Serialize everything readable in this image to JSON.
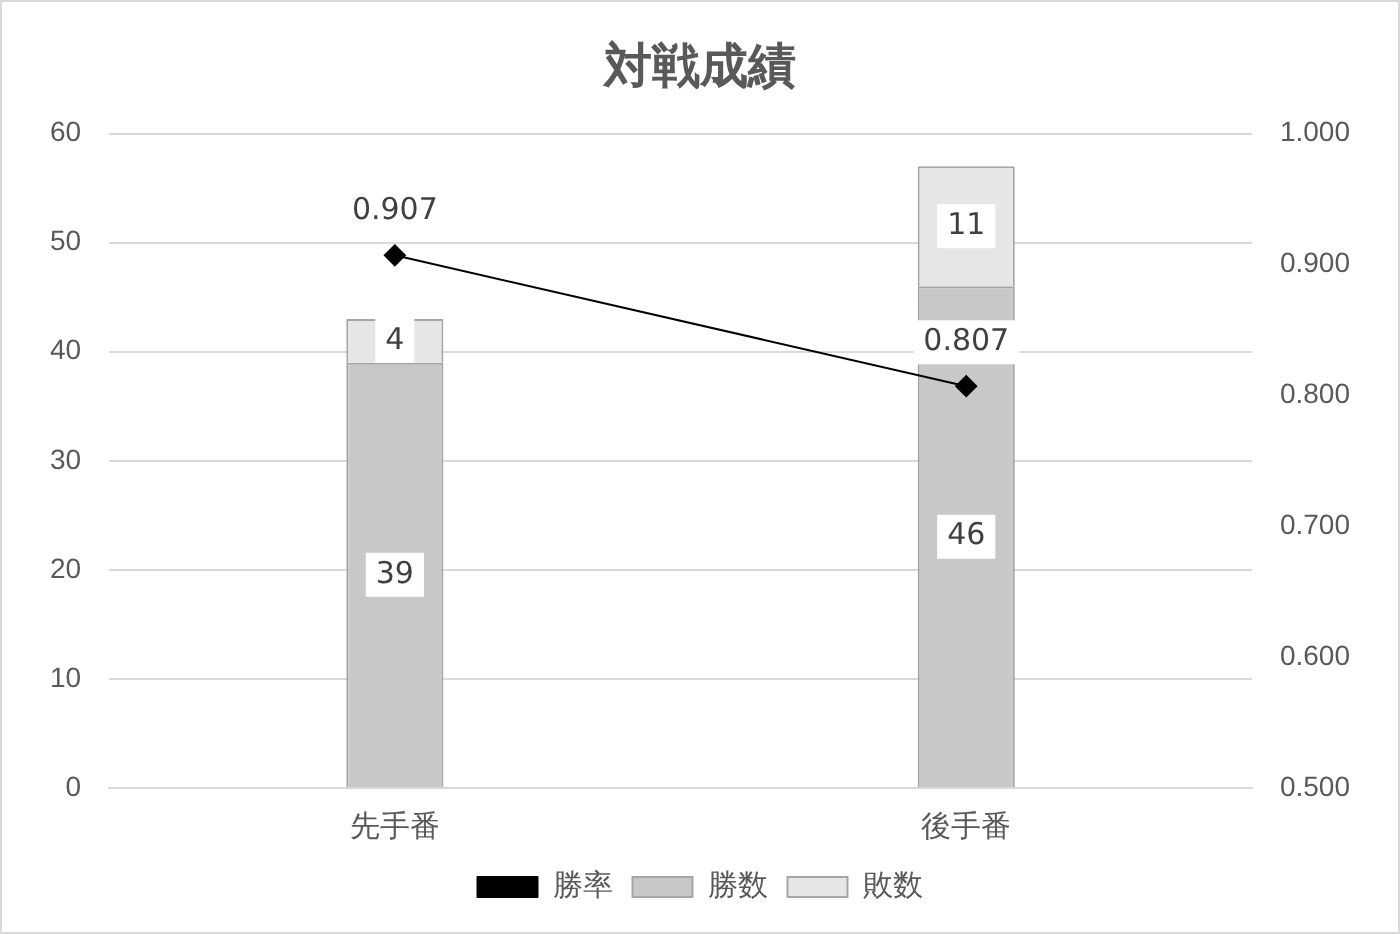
{
  "chart_data": {
    "type": "bar",
    "title": "対戦成績",
    "stacked": true,
    "categories": [
      "先手番",
      "後手番"
    ],
    "series": [
      {
        "name": "勝数",
        "color": "#c9c7c8",
        "values": [
          39,
          46
        ]
      },
      {
        "name": "敗数",
        "color": "#e7e6e6",
        "values": [
          4,
          11
        ]
      },
      {
        "name": "勝率",
        "type": "line",
        "axis": "y2",
        "color": "#000000",
        "values": [
          0.907,
          0.807
        ]
      }
    ],
    "ylim": [
      0,
      60
    ],
    "yticks": [
      0,
      10,
      20,
      30,
      40,
      50,
      60
    ],
    "y2lim": [
      0.5,
      1.0
    ],
    "y2ticks": [
      {
        "value": 0.5,
        "label": "0.500"
      },
      {
        "value": 0.6,
        "label": "0.600"
      },
      {
        "value": 0.7,
        "label": "0.700"
      },
      {
        "value": 0.8,
        "label": "0.800"
      },
      {
        "value": 0.9,
        "label": "0.900"
      },
      {
        "value": 1.0,
        "label": "1.000"
      }
    ],
    "grid": "y",
    "legend": "bottom",
    "marker": "diamond",
    "line_style": "solid",
    "data_labels": true
  }
}
